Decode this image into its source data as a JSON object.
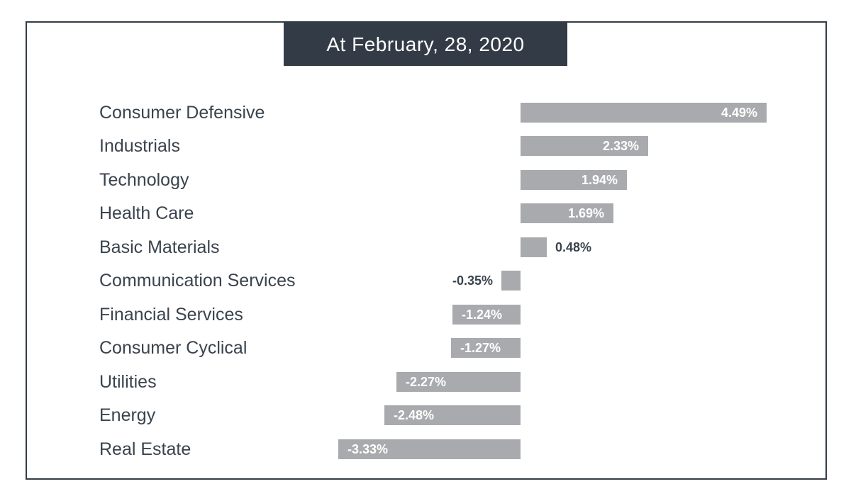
{
  "header": {
    "title": "At February, 28, 2020"
  },
  "colors": {
    "bar": "#a8aaad",
    "title_background": "#333c46",
    "frame_border": "#333c46",
    "category_text": "#3a434d",
    "value_text_inside": "#ffffff",
    "value_text_outside": "#3a434d"
  },
  "chart_data": {
    "type": "bar",
    "orientation": "horizontal",
    "title": "At February, 28, 2020",
    "categories": [
      "Consumer Defensive",
      "Industrials",
      "Technology",
      "Health Care",
      "Basic Materials",
      "Communication Services",
      "Financial Services",
      "Consumer Cyclical",
      "Utilities",
      "Energy",
      "Real Estate"
    ],
    "values": [
      4.49,
      2.33,
      1.94,
      1.69,
      0.48,
      -0.35,
      -1.24,
      -1.27,
      -2.27,
      -2.48,
      -3.33
    ],
    "value_labels": [
      "4.49%",
      "2.33%",
      "1.94%",
      "1.69%",
      "0.48%",
      "-0.35%",
      "-1.24%",
      "-1.27%",
      "-2.27%",
      "-2.48%",
      "-3.33%"
    ],
    "xlabel": "",
    "ylabel": "",
    "xlim": [
      -3.33,
      4.49
    ],
    "grid": false,
    "legend": false,
    "axis_ticks_visible": false,
    "bar_color": "#a8aaad"
  }
}
